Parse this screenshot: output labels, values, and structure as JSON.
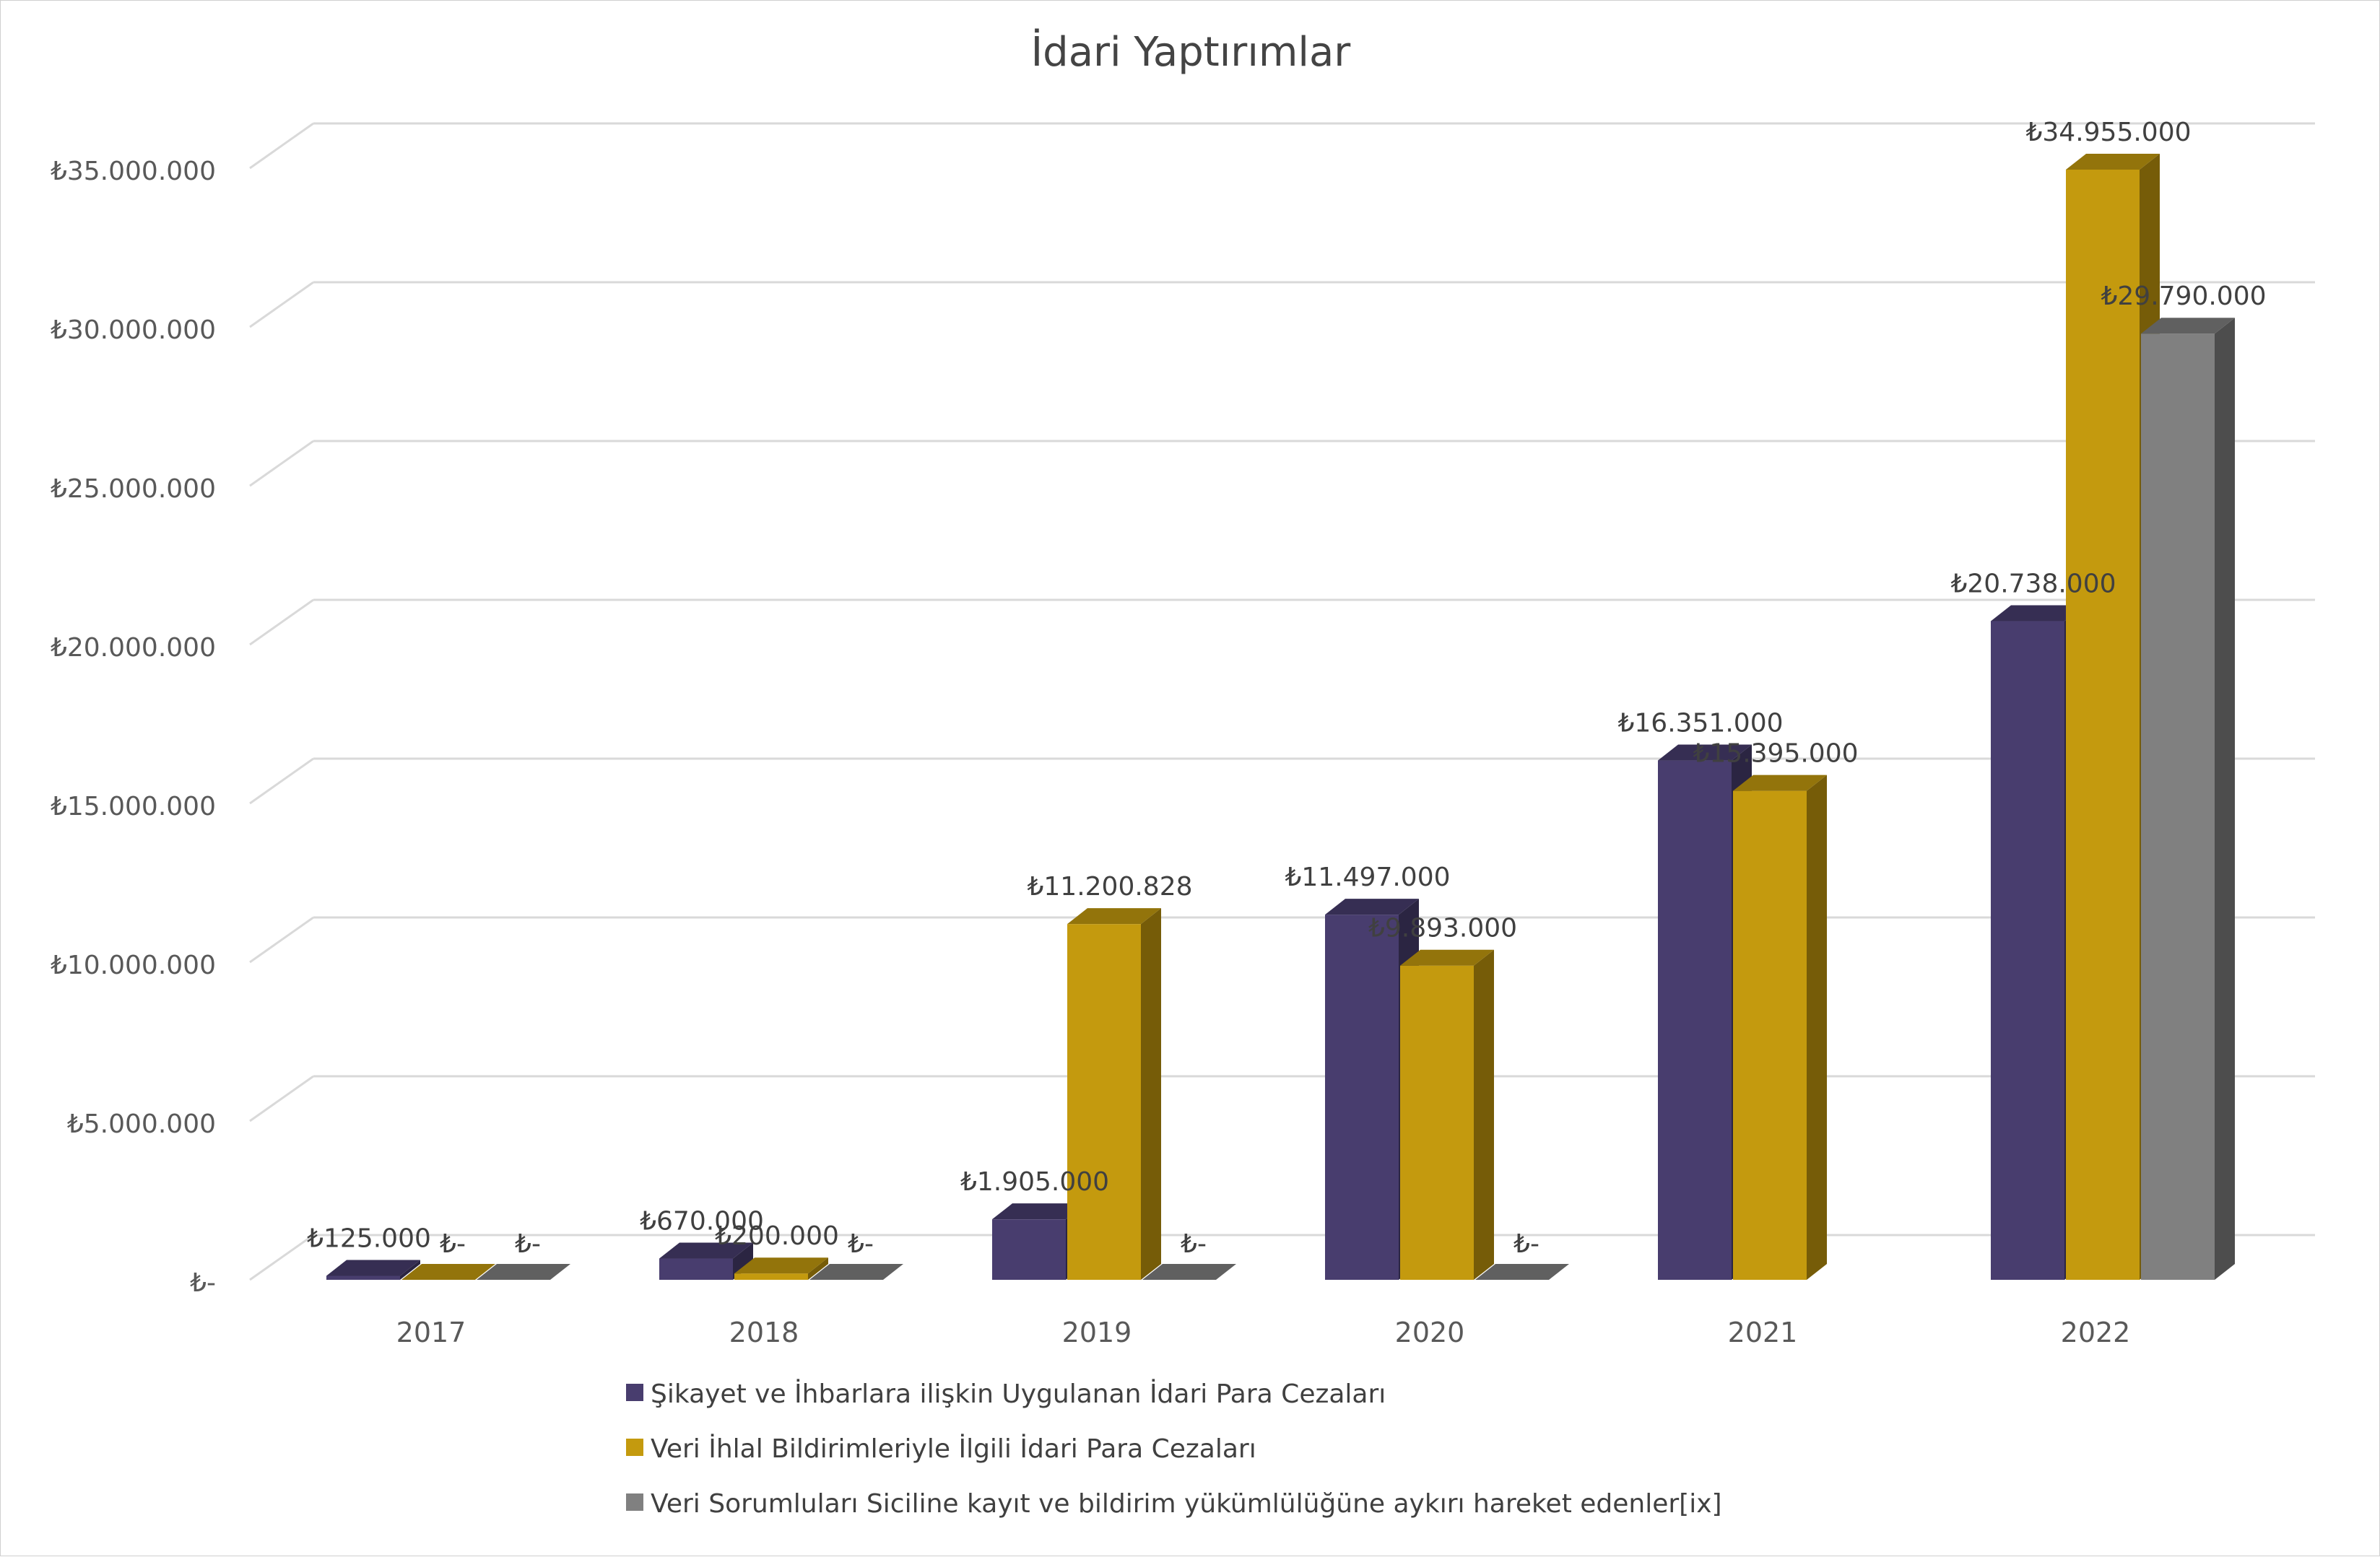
{
  "chart_data": {
    "type": "bar",
    "title": "İdari Yaptırımlar",
    "categories": [
      "2017",
      "2018",
      "2019",
      "2020",
      "2021",
      "2022"
    ],
    "series": [
      {
        "name": "Şikayet ve İhbarlara ilişkin Uygulanan İdari Para Cezaları",
        "color": "#483D6E",
        "values": [
          125000,
          670000,
          1905000,
          11497000,
          16351000,
          20738000
        ],
        "labels": [
          "₺125.000",
          "₺670.000",
          "₺1.905.000",
          "₺11.497.000",
          "₺16.351.000",
          "₺20.738.000"
        ]
      },
      {
        "name": "Veri İhlal Bildirimleriyle İlgili İdari Para Cezaları",
        "color": "#C49A0E",
        "values": [
          0,
          200000,
          11200828,
          9893000,
          15395000,
          34955000
        ],
        "labels": [
          "₺-",
          "₺200.000",
          "₺11.200.828",
          "₺9.893.000",
          "₺15.395.000",
          "₺34.955.000"
        ]
      },
      {
        "name": "Veri Sorumluları Siciline kayıt ve bildirim yükümlülüğüne aykırı hareket edenler[ix]",
        "color": "#808080",
        "values": [
          0,
          0,
          0,
          0,
          null,
          29790000
        ],
        "labels": [
          "₺-",
          "₺-",
          "₺-",
          "₺-",
          null,
          "₺29.790.000"
        ]
      }
    ],
    "ylim": [
      0,
      35000000
    ],
    "yticks": [
      {
        "value": 0,
        "label": "₺-"
      },
      {
        "value": 5000000,
        "label": "₺5.000.000"
      },
      {
        "value": 10000000,
        "label": "₺10.000.000"
      },
      {
        "value": 15000000,
        "label": "₺15.000.000"
      },
      {
        "value": 20000000,
        "label": "₺20.000.000"
      },
      {
        "value": 25000000,
        "label": "₺25.000.000"
      },
      {
        "value": 30000000,
        "label": "₺30.000.000"
      },
      {
        "value": 35000000,
        "label": "₺35.000.000"
      }
    ],
    "grid": true,
    "legend_position": "bottom",
    "three_d": true
  }
}
